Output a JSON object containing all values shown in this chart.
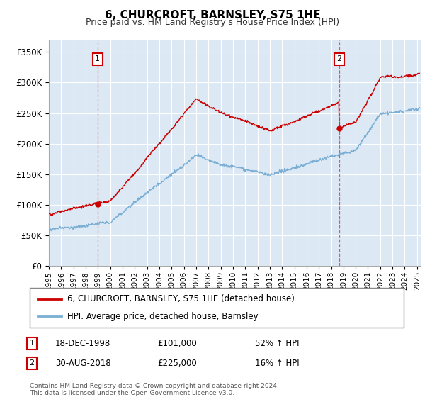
{
  "title": "6, CHURCROFT, BARNSLEY, S75 1HE",
  "subtitle": "Price paid vs. HM Land Registry's House Price Index (HPI)",
  "legend_line1": "6, CHURCROFT, BARNSLEY, S75 1HE (detached house)",
  "legend_line2": "HPI: Average price, detached house, Barnsley",
  "footnote1": "Contains HM Land Registry data © Crown copyright and database right 2024.",
  "footnote2": "This data is licensed under the Open Government Licence v3.0.",
  "annotation1_label": "1",
  "annotation1_date": "18-DEC-1998",
  "annotation1_price": "£101,000",
  "annotation1_hpi": "52% ↑ HPI",
  "annotation2_label": "2",
  "annotation2_date": "30-AUG-2018",
  "annotation2_price": "£225,000",
  "annotation2_hpi": "16% ↑ HPI",
  "sale1_x": 1998.97,
  "sale1_y": 101000,
  "sale2_x": 2018.66,
  "sale2_y": 225000,
  "hpi_color": "#7aaed4",
  "property_color": "#cc0000",
  "background_plot": "#dce9f5",
  "background_fig": "#ffffff",
  "ylim": [
    0,
    370000
  ],
  "xlim_start": 1995.0,
  "xlim_end": 2025.3,
  "yticks": [
    0,
    50000,
    100000,
    150000,
    200000,
    250000,
    300000,
    350000
  ],
  "xtick_years": [
    1995,
    1996,
    1997,
    1998,
    1999,
    2000,
    2001,
    2002,
    2003,
    2004,
    2005,
    2006,
    2007,
    2008,
    2009,
    2010,
    2011,
    2012,
    2013,
    2014,
    2015,
    2016,
    2017,
    2018,
    2019,
    2020,
    2021,
    2022,
    2023,
    2024,
    2025
  ]
}
